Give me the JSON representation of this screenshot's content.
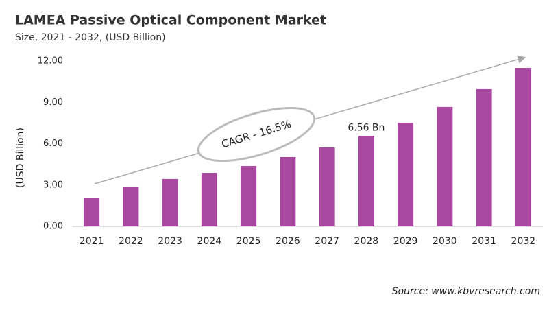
{
  "chart_data": {
    "type": "bar",
    "title": "LAMEA Passive Optical Component Market",
    "subtitle": "Size, 2021 - 2032, (USD Billion)",
    "y_axis_label": "(USD Billion)",
    "annotation": "CAGR - 16.5%",
    "source": "Source: www.kbvresearch.com",
    "categories": [
      "2021",
      "2022",
      "2023",
      "2024",
      "2025",
      "2026",
      "2027",
      "2028",
      "2029",
      "2030",
      "2031",
      "2032"
    ],
    "values": [
      2.09,
      2.89,
      3.44,
      3.88,
      4.38,
      5.03,
      5.73,
      6.56,
      7.52,
      8.67,
      9.96,
      11.5
    ],
    "value_labels": [
      null,
      null,
      null,
      null,
      null,
      null,
      null,
      "6.56 Bn",
      null,
      null,
      null,
      null
    ],
    "color": "#a8489f",
    "ylim": [
      0,
      12
    ],
    "yticks": [
      {
        "value": 0,
        "label": "0.00"
      },
      {
        "value": 3,
        "label": "3.00"
      },
      {
        "value": 6,
        "label": "6.00"
      },
      {
        "value": 9,
        "label": "9.00"
      },
      {
        "value": 12,
        "label": "12.00"
      }
    ],
    "grid": false
  }
}
